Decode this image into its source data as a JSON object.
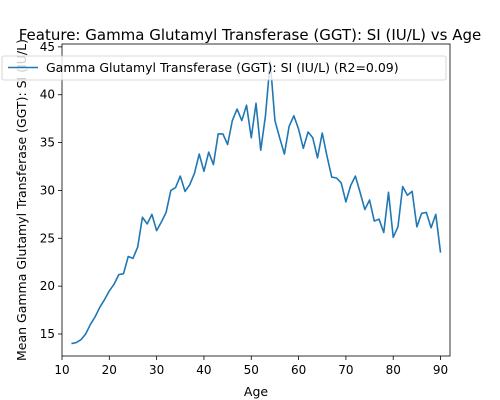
{
  "chart_data": {
    "type": "line",
    "title": "Feature: Gamma Glutamyl Transferase (GGT): SI (IU/L) vs Age",
    "xlabel": "Age",
    "ylabel": "Mean Gamma Glutamyl Transferase (GGT): SI (IU/L)",
    "xlim": [
      10,
      92
    ],
    "ylim": [
      12.7,
      45.3
    ],
    "xticks": [
      10,
      20,
      30,
      40,
      50,
      60,
      70,
      80,
      90
    ],
    "yticks": [
      15,
      20,
      25,
      30,
      35,
      40,
      45
    ],
    "legend_position": "top-left",
    "grid": false,
    "series": [
      {
        "name": "Gamma Glutamyl Transferase (GGT): SI (IU/L) (R2=0.09)",
        "color": "#1f77b4",
        "x": [
          12,
          13,
          14,
          15,
          16,
          17,
          18,
          19,
          20,
          21,
          22,
          23,
          24,
          25,
          26,
          27,
          28,
          29,
          30,
          31,
          32,
          33,
          34,
          35,
          36,
          37,
          38,
          39,
          40,
          41,
          42,
          43,
          44,
          45,
          46,
          47,
          48,
          49,
          50,
          51,
          52,
          53,
          54,
          55,
          56,
          57,
          58,
          59,
          60,
          61,
          62,
          63,
          64,
          65,
          66,
          67,
          68,
          69,
          70,
          71,
          72,
          73,
          74,
          75,
          76,
          77,
          78,
          79,
          80,
          81,
          82,
          83,
          84,
          85,
          86,
          87,
          88,
          89,
          90
        ],
        "y": [
          14.0,
          14.1,
          14.4,
          15.0,
          16.0,
          16.8,
          17.8,
          18.6,
          19.5,
          20.2,
          21.2,
          21.3,
          23.1,
          22.9,
          24.1,
          27.2,
          26.5,
          27.5,
          25.8,
          26.7,
          27.7,
          30.0,
          30.3,
          31.5,
          29.9,
          30.6,
          31.8,
          33.8,
          32.0,
          34.0,
          32.7,
          35.9,
          35.9,
          34.8,
          37.3,
          38.5,
          37.3,
          38.9,
          35.5,
          39.1,
          34.2,
          37.8,
          43.5,
          37.3,
          35.5,
          33.8,
          36.7,
          37.8,
          36.4,
          34.4,
          36.1,
          35.5,
          33.4,
          36.0,
          33.6,
          31.4,
          31.3,
          30.8,
          28.8,
          30.5,
          31.5,
          29.8,
          28.0,
          29.0,
          26.8,
          27.0,
          25.6,
          29.8,
          25.1,
          26.2,
          30.4,
          29.5,
          29.9,
          26.2,
          27.6,
          27.7,
          26.1,
          27.5,
          23.5
        ]
      }
    ]
  }
}
